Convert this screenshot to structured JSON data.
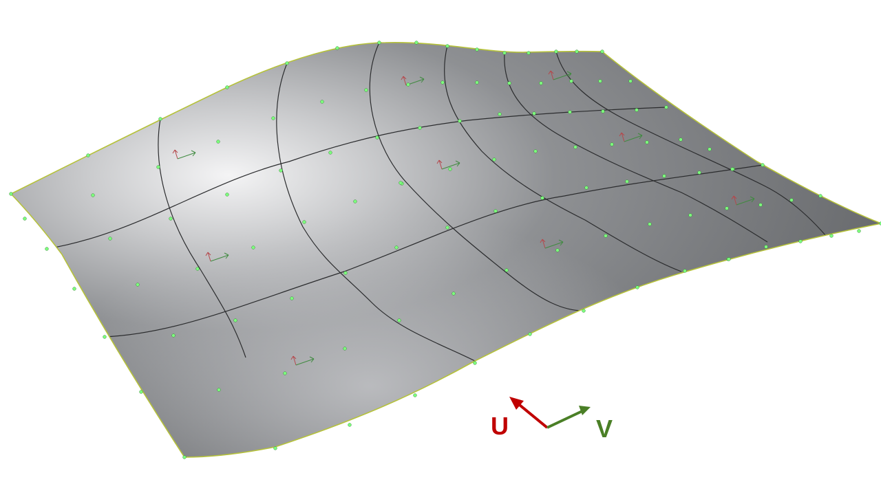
{
  "colors": {
    "background": "#ffffff",
    "surface_light": "#d6d7d9",
    "surface_dark": "#6e7073",
    "edge": "#b6c23a",
    "isocurve": "#2a2b2d",
    "control_point": "#7dff7d",
    "u_axis": "#c00000",
    "v_axis": "#4a7f26"
  },
  "axes": {
    "u_label": "U",
    "v_label": "V"
  },
  "icons": [
    "uv-axis-icon",
    "patch-direction-icon"
  ]
}
